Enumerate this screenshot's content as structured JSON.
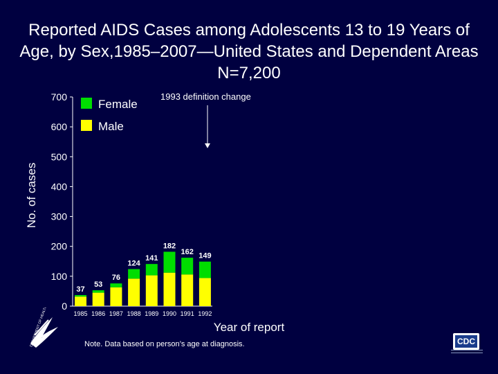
{
  "title_lines": [
    "Reported AIDS Cases among Adolescents 13 to 19 Years of",
    "Age, by Sex,1985–2007—United States and Dependent Areas",
    "N=7,200"
  ],
  "note": "Note. Data based on person’s age at diagnosis.",
  "cdc_logo_text": "CDC",
  "hhs_logo_text": "DEPARTMENT OF HEALTH & HUMAN SERVICES · USA",
  "colors": {
    "background": "#000040",
    "female": "#00dd00",
    "male": "#ffff00",
    "text": "#ffffff"
  },
  "chart_data": {
    "type": "bar",
    "stacked": true,
    "categories": [
      "1985",
      "1986",
      "1987",
      "1988",
      "1989",
      "1990",
      "1991",
      "1992"
    ],
    "series": [
      {
        "name": "Male",
        "values": [
          32,
          45,
          63,
          92,
          103,
          112,
          106,
          94
        ]
      },
      {
        "name": "Female",
        "values": [
          5,
          8,
          13,
          32,
          38,
          70,
          56,
          55
        ]
      }
    ],
    "totals": [
      37,
      53,
      76,
      124,
      141,
      182,
      162,
      149
    ],
    "legend_order": [
      "Female",
      "Male"
    ],
    "legend_position": "top-left",
    "xlabel": "Year of report",
    "ylabel": "No. of cases",
    "ylim": [
      0,
      700
    ],
    "yticks": [
      0,
      100,
      200,
      300,
      400,
      500,
      600,
      700
    ],
    "annotation": {
      "text": "1993 definition change",
      "after_category": "1992"
    }
  }
}
